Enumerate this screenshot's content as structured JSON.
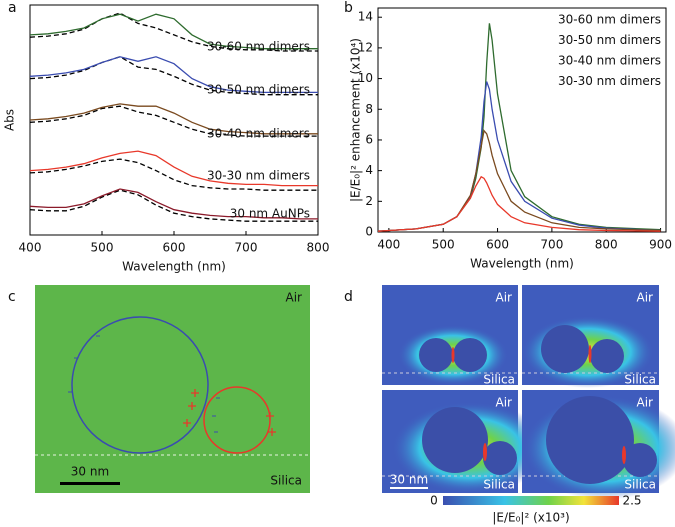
{
  "chart_data": [
    {
      "type": "line",
      "letter": "a",
      "xlabel": "Wavelength (nm)",
      "ylabel": "Abs",
      "x": [
        400,
        425,
        450,
        475,
        500,
        525,
        550,
        575,
        600,
        625,
        650,
        675,
        700,
        725,
        750,
        775,
        800
      ],
      "xlim": [
        400,
        800
      ],
      "xticks": [
        400,
        500,
        600,
        700,
        800
      ],
      "ylim": [
        0,
        10
      ],
      "series": [
        {
          "name": "30-60 nm dimers",
          "color": "#2e6b2e",
          "values": [
            8.7,
            8.75,
            8.85,
            9.0,
            9.4,
            9.6,
            9.3,
            9.6,
            9.4,
            8.7,
            8.3,
            8.2,
            8.15,
            8.1,
            8.1,
            8.1,
            8.1
          ],
          "fit_values": [
            8.6,
            8.65,
            8.75,
            8.95,
            9.4,
            9.65,
            9.2,
            9.0,
            8.7,
            8.4,
            8.2,
            8.1,
            8.05,
            8.05,
            8.0,
            8.0,
            8.0
          ]
        },
        {
          "name": "30-50 nm dimers",
          "color": "#3a4cb0",
          "values": [
            6.9,
            6.95,
            7.05,
            7.2,
            7.5,
            7.75,
            7.55,
            7.75,
            7.45,
            6.8,
            6.45,
            6.3,
            6.25,
            6.2,
            6.2,
            6.2,
            6.2
          ],
          "fit_values": [
            6.8,
            6.85,
            6.95,
            7.15,
            7.5,
            7.75,
            7.3,
            7.2,
            6.9,
            6.55,
            6.3,
            6.2,
            6.15,
            6.1,
            6.1,
            6.1,
            6.1
          ]
        },
        {
          "name": "30-40 nm dimers",
          "color": "#7a4a1f",
          "values": [
            5.0,
            5.05,
            5.15,
            5.3,
            5.55,
            5.7,
            5.6,
            5.6,
            5.3,
            4.9,
            4.6,
            4.5,
            4.45,
            4.4,
            4.4,
            4.4,
            4.4
          ],
          "fit_values": [
            4.9,
            4.95,
            5.05,
            5.2,
            5.5,
            5.6,
            5.35,
            5.2,
            4.9,
            4.6,
            4.4,
            4.35,
            4.3,
            4.3,
            4.3,
            4.3,
            4.3
          ]
        },
        {
          "name": "30-30 nm dimers",
          "color": "#e8382a",
          "values": [
            2.8,
            2.85,
            2.95,
            3.1,
            3.35,
            3.55,
            3.65,
            3.45,
            2.95,
            2.55,
            2.35,
            2.25,
            2.2,
            2.2,
            2.15,
            2.15,
            2.15
          ],
          "fit_values": [
            2.7,
            2.75,
            2.85,
            3.0,
            3.2,
            3.3,
            3.15,
            2.8,
            2.4,
            2.15,
            2.05,
            2.0,
            2.0,
            1.95,
            1.95,
            1.95,
            1.95
          ]
        },
        {
          "name": "30 nm AuNPs",
          "color": "#8b1a2a",
          "values": [
            1.25,
            1.2,
            1.2,
            1.35,
            1.7,
            2.0,
            1.85,
            1.45,
            1.1,
            0.95,
            0.85,
            0.8,
            0.8,
            0.75,
            0.75,
            0.7,
            0.7
          ],
          "fit_values": [
            1.1,
            1.05,
            1.05,
            1.25,
            1.65,
            1.95,
            1.75,
            1.3,
            0.95,
            0.8,
            0.7,
            0.65,
            0.6,
            0.6,
            0.6,
            0.6,
            0.6
          ]
        }
      ]
    },
    {
      "type": "line",
      "letter": "b",
      "xlabel": "Wavelength (nm)",
      "ylabel": "|E/E₀|² enhancement (x10⁴)",
      "x": [
        380,
        450,
        500,
        525,
        550,
        560,
        570,
        575,
        580,
        585,
        590,
        600,
        625,
        650,
        700,
        750,
        800,
        900
      ],
      "xlim": [
        380,
        910
      ],
      "xticks": [
        400,
        500,
        600,
        700,
        800,
        900
      ],
      "ylim": [
        0,
        14.6
      ],
      "yticks": [
        0,
        2,
        4,
        6,
        8,
        10,
        12,
        14
      ],
      "series": [
        {
          "name": "30-60 nm dimers",
          "color": "#2e6b2e",
          "values": [
            0.05,
            0.2,
            0.5,
            1.0,
            2.2,
            3.5,
            5.5,
            7.5,
            11,
            13.6,
            12.5,
            9,
            4.0,
            2.3,
            1.0,
            0.5,
            0.3,
            0.15
          ]
        },
        {
          "name": "30-50 nm dimers",
          "color": "#3a4cb0",
          "values": [
            0.05,
            0.2,
            0.5,
            1.0,
            2.3,
            3.8,
            6.2,
            8.5,
            9.8,
            9.3,
            8.0,
            6.0,
            3.3,
            2.0,
            0.9,
            0.45,
            0.25,
            0.1
          ]
        },
        {
          "name": "30-40 nm dimers",
          "color": "#7a4a1f",
          "values": [
            0.05,
            0.2,
            0.5,
            1.0,
            2.4,
            3.8,
            5.6,
            6.6,
            6.4,
            5.8,
            5.0,
            3.8,
            2.0,
            1.3,
            0.6,
            0.3,
            0.2,
            0.1
          ]
        },
        {
          "name": "30-30 nm dimers",
          "color": "#e8382a",
          "values": [
            0.05,
            0.2,
            0.5,
            1.0,
            2.2,
            3.0,
            3.6,
            3.5,
            3.2,
            2.8,
            2.4,
            1.8,
            1.0,
            0.6,
            0.3,
            0.15,
            0.1,
            0.05
          ]
        }
      ]
    }
  ],
  "panel_c": {
    "letter": "c",
    "air": "Air",
    "silica": "Silica",
    "scale": "30 nm"
  },
  "panel_d": {
    "letter": "d",
    "air": "Air",
    "silica": "Silica",
    "scale": "30 nm",
    "colorbar_min": "0",
    "colorbar_max": "2.5",
    "colorbar_label": "|E/E₀|²  (x10³)"
  }
}
